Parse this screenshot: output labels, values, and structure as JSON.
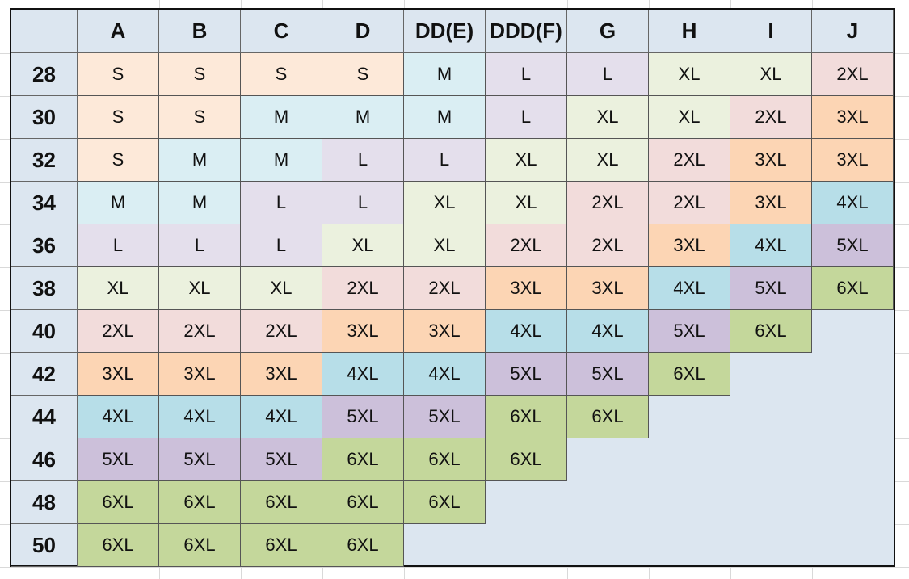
{
  "table": {
    "columns": [
      "A",
      "B",
      "C",
      "D",
      "DD(E)",
      "DDD(F)",
      "G",
      "H",
      "I",
      "J"
    ],
    "rows": [
      {
        "label": "28",
        "cells": [
          "S",
          "S",
          "S",
          "S",
          "M",
          "L",
          "L",
          "XL",
          "XL",
          "2XL"
        ]
      },
      {
        "label": "30",
        "cells": [
          "S",
          "S",
          "M",
          "M",
          "M",
          "L",
          "XL",
          "XL",
          "2XL",
          "3XL"
        ]
      },
      {
        "label": "32",
        "cells": [
          "S",
          "M",
          "M",
          "L",
          "L",
          "XL",
          "XL",
          "2XL",
          "3XL",
          "3XL"
        ]
      },
      {
        "label": "34",
        "cells": [
          "M",
          "M",
          "L",
          "L",
          "XL",
          "XL",
          "2XL",
          "2XL",
          "3XL",
          "4XL"
        ]
      },
      {
        "label": "36",
        "cells": [
          "L",
          "L",
          "L",
          "XL",
          "XL",
          "2XL",
          "2XL",
          "3XL",
          "4XL",
          "5XL"
        ]
      },
      {
        "label": "38",
        "cells": [
          "XL",
          "XL",
          "XL",
          "2XL",
          "2XL",
          "3XL",
          "3XL",
          "4XL",
          "5XL",
          "6XL"
        ]
      },
      {
        "label": "40",
        "cells": [
          "2XL",
          "2XL",
          "2XL",
          "3XL",
          "3XL",
          "4XL",
          "4XL",
          "5XL",
          "6XL"
        ]
      },
      {
        "label": "42",
        "cells": [
          "3XL",
          "3XL",
          "3XL",
          "4XL",
          "4XL",
          "5XL",
          "5XL",
          "6XL"
        ]
      },
      {
        "label": "44",
        "cells": [
          "4XL",
          "4XL",
          "4XL",
          "5XL",
          "5XL",
          "6XL",
          "6XL"
        ]
      },
      {
        "label": "46",
        "cells": [
          "5XL",
          "5XL",
          "5XL",
          "6XL",
          "6XL",
          "6XL"
        ]
      },
      {
        "label": "48",
        "cells": [
          "6XL",
          "6XL",
          "6XL",
          "6XL",
          "6XL"
        ]
      },
      {
        "label": "50",
        "cells": [
          "6XL",
          "6XL",
          "6XL",
          "6XL"
        ]
      }
    ],
    "colors": {
      "S": "#fde9d9",
      "M": "#daeef3",
      "L": "#e4dfec",
      "XL": "#ebf1de",
      "2XL": "#f2dcdb",
      "3XL": "#fcd5b4",
      "4XL": "#b7dee8",
      "5XL": "#ccc0da",
      "6XL": "#c4d79b"
    }
  }
}
